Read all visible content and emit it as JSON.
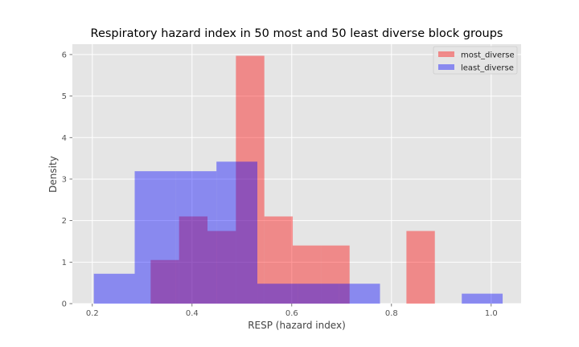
{
  "chart_data": {
    "type": "histogram",
    "title": "Respiratory hazard index in 50 most and 50 least diverse block groups",
    "xlabel": "RESP (hazard index)",
    "ylabel": "Density",
    "xlim": [
      0.16,
      1.06
    ],
    "ylim": [
      0,
      6.25
    ],
    "xticks": [
      0.2,
      0.4,
      0.6,
      0.8,
      1.0
    ],
    "xtick_labels": [
      "0.2",
      "0.4",
      "0.6",
      "0.8",
      "1.0"
    ],
    "yticks": [
      0,
      1,
      2,
      3,
      4,
      5,
      6
    ],
    "ytick_labels": [
      "0",
      "1",
      "2",
      "3",
      "4",
      "5",
      "6"
    ],
    "grid": true,
    "legend_position": "top-right",
    "background": "#e5e5e5",
    "series": [
      {
        "name": "most_diverse",
        "color": "#ff0000",
        "alpha": 0.4,
        "bins": [
          {
            "x0": 0.317,
            "x1": 0.374,
            "density": 1.05
          },
          {
            "x0": 0.374,
            "x1": 0.431,
            "density": 2.1
          },
          {
            "x0": 0.431,
            "x1": 0.488,
            "density": 1.75
          },
          {
            "x0": 0.488,
            "x1": 0.545,
            "density": 5.97
          },
          {
            "x0": 0.545,
            "x1": 0.602,
            "density": 2.1
          },
          {
            "x0": 0.602,
            "x1": 0.659,
            "density": 1.4
          },
          {
            "x0": 0.659,
            "x1": 0.716,
            "density": 1.4
          },
          {
            "x0": 0.716,
            "x1": 0.773,
            "density": 0.0
          },
          {
            "x0": 0.773,
            "x1": 0.83,
            "density": 0.0
          },
          {
            "x0": 0.83,
            "x1": 0.887,
            "density": 1.75
          }
        ]
      },
      {
        "name": "least_diverse",
        "color": "#0000ff",
        "alpha": 0.4,
        "bins": [
          {
            "x0": 0.203,
            "x1": 0.285,
            "density": 0.72
          },
          {
            "x0": 0.285,
            "x1": 0.367,
            "density": 3.19
          },
          {
            "x0": 0.367,
            "x1": 0.449,
            "density": 3.19
          },
          {
            "x0": 0.449,
            "x1": 0.531,
            "density": 3.42
          },
          {
            "x0": 0.531,
            "x1": 0.613,
            "density": 0.48
          },
          {
            "x0": 0.613,
            "x1": 0.695,
            "density": 0.48
          },
          {
            "x0": 0.695,
            "x1": 0.777,
            "density": 0.48
          },
          {
            "x0": 0.777,
            "x1": 0.859,
            "density": 0.0
          },
          {
            "x0": 0.859,
            "x1": 0.941,
            "density": 0.0
          },
          {
            "x0": 0.941,
            "x1": 1.023,
            "density": 0.24
          }
        ]
      }
    ]
  }
}
